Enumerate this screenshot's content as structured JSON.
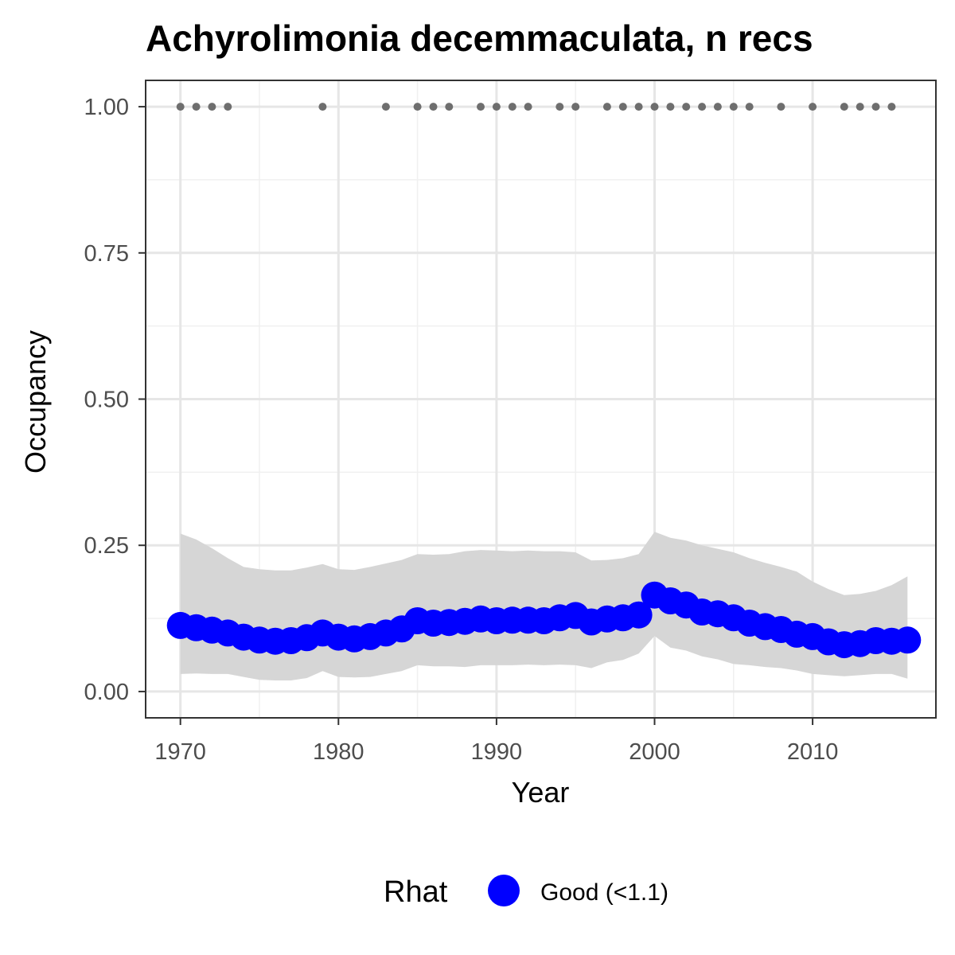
{
  "chart_data": {
    "type": "line",
    "title": "Achyrolimonia decemmaculata, n recs",
    "xlabel": "Year",
    "ylabel": "Occupancy",
    "xlim": [
      1967.8,
      2017.8
    ],
    "ylim": [
      -0.045,
      1.045
    ],
    "x_ticks": [
      1970,
      1980,
      1990,
      2000,
      2010
    ],
    "y_ticks": [
      0,
      0.25,
      0.5,
      0.75,
      1
    ],
    "y_tick_labels": [
      "0.00",
      "0.25",
      "0.50",
      "0.75",
      "1.00"
    ],
    "grid": true,
    "legend": {
      "title": "Rhat",
      "position": "bottom",
      "entries": [
        {
          "label": "Good (<1.1)",
          "color": "#0000ff"
        }
      ]
    },
    "colors": {
      "series": "#0000ff",
      "ribbon": "#d6d6d6",
      "records": "#6e6e6e"
    },
    "years": [
      1970,
      1971,
      1972,
      1973,
      1974,
      1975,
      1976,
      1977,
      1978,
      1979,
      1980,
      1981,
      1982,
      1983,
      1984,
      1985,
      1986,
      1987,
      1988,
      1989,
      1990,
      1991,
      1992,
      1993,
      1994,
      1995,
      1996,
      1997,
      1998,
      1999,
      2000,
      2001,
      2002,
      2003,
      2004,
      2005,
      2006,
      2007,
      2008,
      2009,
      2010,
      2011,
      2012,
      2013,
      2014,
      2015,
      2016
    ],
    "occupancy": [
      0.113,
      0.109,
      0.105,
      0.1,
      0.093,
      0.088,
      0.086,
      0.087,
      0.092,
      0.1,
      0.093,
      0.09,
      0.094,
      0.1,
      0.107,
      0.121,
      0.117,
      0.118,
      0.12,
      0.124,
      0.121,
      0.122,
      0.122,
      0.121,
      0.126,
      0.13,
      0.119,
      0.124,
      0.126,
      0.131,
      0.165,
      0.155,
      0.148,
      0.136,
      0.133,
      0.126,
      0.117,
      0.111,
      0.106,
      0.098,
      0.094,
      0.085,
      0.08,
      0.082,
      0.087,
      0.086,
      0.088
    ],
    "lower": [
      0.03,
      0.031,
      0.03,
      0.03,
      0.025,
      0.02,
      0.019,
      0.019,
      0.023,
      0.035,
      0.025,
      0.024,
      0.025,
      0.03,
      0.035,
      0.045,
      0.043,
      0.043,
      0.042,
      0.045,
      0.045,
      0.045,
      0.046,
      0.045,
      0.046,
      0.045,
      0.04,
      0.05,
      0.054,
      0.065,
      0.095,
      0.075,
      0.07,
      0.06,
      0.055,
      0.047,
      0.045,
      0.042,
      0.04,
      0.036,
      0.03,
      0.028,
      0.026,
      0.028,
      0.03,
      0.03,
      0.022
    ],
    "upper": [
      0.27,
      0.26,
      0.245,
      0.228,
      0.213,
      0.209,
      0.207,
      0.207,
      0.212,
      0.218,
      0.209,
      0.208,
      0.213,
      0.219,
      0.225,
      0.235,
      0.234,
      0.235,
      0.24,
      0.242,
      0.241,
      0.24,
      0.241,
      0.24,
      0.24,
      0.238,
      0.224,
      0.225,
      0.228,
      0.235,
      0.273,
      0.263,
      0.258,
      0.25,
      0.244,
      0.238,
      0.228,
      0.22,
      0.213,
      0.205,
      0.188,
      0.175,
      0.165,
      0.167,
      0.172,
      0.182,
      0.197
    ],
    "record_years": [
      1970,
      1971,
      1972,
      1973,
      1979,
      1983,
      1985,
      1986,
      1987,
      1989,
      1990,
      1991,
      1992,
      1994,
      1995,
      1997,
      1998,
      1999,
      2000,
      2001,
      2002,
      2003,
      2004,
      2005,
      2006,
      2008,
      2010,
      2012,
      2013,
      2014,
      2015
    ],
    "record_value": 1
  }
}
